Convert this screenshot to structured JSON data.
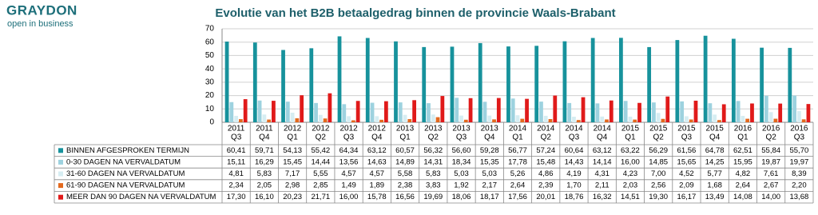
{
  "logo": {
    "name": "GRAYDON",
    "tagline": "open in business"
  },
  "chart_data": {
    "type": "bar",
    "title": "Evolutie van het B2B betaalgedrag binnen de provincie Waals-Brabant",
    "categories": [
      [
        "2011",
        "Q3"
      ],
      [
        "2011",
        "Q4"
      ],
      [
        "2012",
        "Q1"
      ],
      [
        "2012",
        "Q2"
      ],
      [
        "2012",
        "Q3"
      ],
      [
        "2012",
        "Q4"
      ],
      [
        "2013",
        "Q1"
      ],
      [
        "2013",
        "Q2"
      ],
      [
        "2013",
        "Q3"
      ],
      [
        "2013",
        "Q4"
      ],
      [
        "2014",
        "Q1"
      ],
      [
        "2014",
        "Q2"
      ],
      [
        "2014",
        "Q3"
      ],
      [
        "2014",
        "Q4"
      ],
      [
        "2015",
        "Q1"
      ],
      [
        "2015",
        "Q2"
      ],
      [
        "2015",
        "Q3"
      ],
      [
        "2015",
        "Q4"
      ],
      [
        "2016",
        "Q1"
      ],
      [
        "2016",
        "Q2"
      ],
      [
        "2016",
        "Q3"
      ]
    ],
    "ylim": [
      0,
      70
    ],
    "yticks": [
      0,
      10,
      20,
      30,
      40,
      50,
      60,
      70
    ],
    "grid": true,
    "series": [
      {
        "name": "BINNEN AFGESPROKEN TERMIJN",
        "color": "#17929c",
        "values": [
          60.41,
          59.71,
          54.13,
          55.42,
          64.34,
          63.12,
          60.57,
          56.32,
          56.6,
          59.28,
          56.77,
          57.24,
          60.64,
          63.12,
          63.22,
          56.29,
          61.56,
          64.78,
          62.51,
          55.84,
          55.7
        ],
        "value_labels": [
          "60,41",
          "59,71",
          "54,13",
          "55,42",
          "64,34",
          "63,12",
          "60,57",
          "56,32",
          "56,60",
          "59,28",
          "56,77",
          "57,24",
          "60,64",
          "63,12",
          "63,22",
          "56,29",
          "61,56",
          "64,78",
          "62,51",
          "55,84",
          "55,70"
        ]
      },
      {
        "name": "0-30 DAGEN NA VERVALDATUM",
        "color": "#9dd2df",
        "values": [
          15.11,
          16.29,
          15.45,
          14.44,
          13.56,
          14.63,
          14.89,
          14.31,
          18.34,
          15.35,
          17.78,
          15.48,
          14.43,
          14.14,
          16.0,
          14.85,
          15.65,
          14.25,
          15.95,
          19.87,
          19.97
        ],
        "value_labels": [
          "15,11",
          "16,29",
          "15,45",
          "14,44",
          "13,56",
          "14,63",
          "14,89",
          "14,31",
          "18,34",
          "15,35",
          "17,78",
          "15,48",
          "14,43",
          "14,14",
          "16,00",
          "14,85",
          "15,65",
          "14,25",
          "15,95",
          "19,87",
          "19,97"
        ]
      },
      {
        "name": "31-60 DAGEN NA VERVALDATUM",
        "color": "#d6edf2",
        "values": [
          4.81,
          5.83,
          7.17,
          5.55,
          4.57,
          4.57,
          5.58,
          5.83,
          5.03,
          5.03,
          5.26,
          4.86,
          4.19,
          4.31,
          4.23,
          7.0,
          4.52,
          5.77,
          4.82,
          7.61,
          8.39
        ],
        "value_labels": [
          "4,81",
          "5,83",
          "7,17",
          "5,55",
          "4,57",
          "4,57",
          "5,58",
          "5,83",
          "5,03",
          "5,03",
          "5,26",
          "4,86",
          "4,19",
          "4,31",
          "4,23",
          "7,00",
          "4,52",
          "5,77",
          "4,82",
          "7,61",
          "8,39"
        ]
      },
      {
        "name": "61-90 DAGEN NA VERVALDATUM",
        "color": "#e3691e",
        "values": [
          2.34,
          2.05,
          2.98,
          2.85,
          1.49,
          1.89,
          2.38,
          3.83,
          1.92,
          2.17,
          2.64,
          2.39,
          1.7,
          2.11,
          2.03,
          2.56,
          2.09,
          1.68,
          2.64,
          2.67,
          2.2
        ],
        "value_labels": [
          "2,34",
          "2,05",
          "2,98",
          "2,85",
          "1,49",
          "1,89",
          "2,38",
          "3,83",
          "1,92",
          "2,17",
          "2,64",
          "2,39",
          "1,70",
          "2,11",
          "2,03",
          "2,56",
          "2,09",
          "1,68",
          "2,64",
          "2,67",
          "2,20"
        ]
      },
      {
        "name": "MEER DAN 90 DAGEN NA VERVALDATUM",
        "color": "#e01a1a",
        "values": [
          17.3,
          16.1,
          20.23,
          21.71,
          16.0,
          15.78,
          16.56,
          19.69,
          18.06,
          18.17,
          17.56,
          20.01,
          18.76,
          16.32,
          14.51,
          19.3,
          16.17,
          13.49,
          14.08,
          14.0,
          13.68
        ],
        "value_labels": [
          "17,30",
          "16,10",
          "20,23",
          "21,71",
          "16,00",
          "15,78",
          "16,56",
          "19,69",
          "18,06",
          "18,17",
          "17,56",
          "20,01",
          "18,76",
          "16,32",
          "14,51",
          "19,30",
          "16,17",
          "13,49",
          "14,08",
          "14,00",
          "13,68"
        ]
      }
    ]
  }
}
